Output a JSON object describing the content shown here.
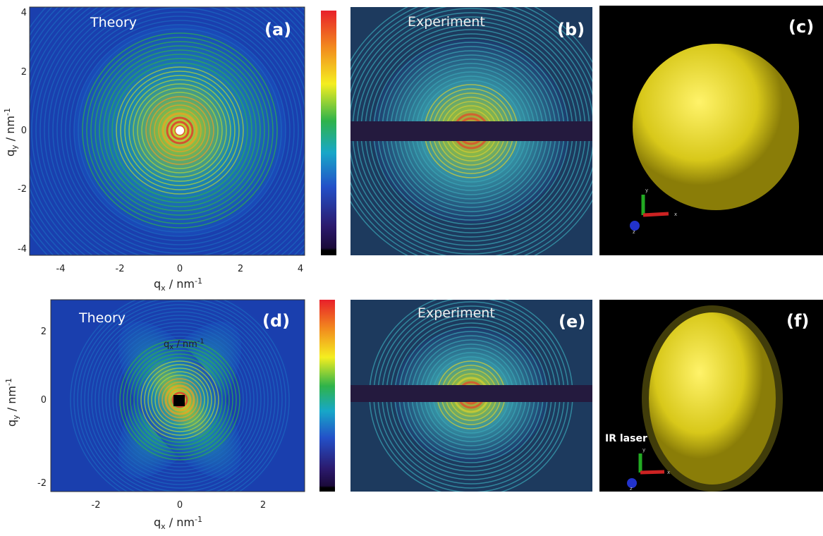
{
  "panels": [
    {
      "id": "(a)",
      "caption": "Theory",
      "x_ticks": [
        "-4",
        "-2",
        "0",
        "2",
        "4"
      ],
      "y_ticks": [
        "4",
        "2",
        "0",
        "-2",
        "-4"
      ],
      "x_label": {
        "base": "q",
        "sub": "x",
        "unit": " / nm",
        "sup": "-1"
      },
      "y_label": {
        "base": "q",
        "sub": "y",
        "unit": " / nm",
        "sup": "-1"
      }
    },
    {
      "id": "(b)",
      "caption": "Experiment"
    },
    {
      "id": "(c)",
      "axes": [
        "y",
        "x",
        "z"
      ]
    },
    {
      "id": "(d)",
      "caption": "Theory",
      "overlay": {
        "base": "q",
        "sub": "x",
        "unit": " / nm",
        "sup": "-1"
      },
      "x_ticks": [
        "-2",
        "0",
        "2"
      ],
      "y_ticks": [
        "2",
        "0",
        "-2"
      ],
      "x_label": {
        "base": "q",
        "sub": "x",
        "unit": " / nm",
        "sup": "-1"
      },
      "y_label": {
        "base": "q",
        "sub": "y",
        "unit": " / nm",
        "sup": "-1"
      }
    },
    {
      "id": "(e)",
      "caption": "Experiment"
    },
    {
      "id": "(f)",
      "annotation": "IR laser",
      "axes": [
        "y",
        "x",
        "z"
      ]
    }
  ]
}
